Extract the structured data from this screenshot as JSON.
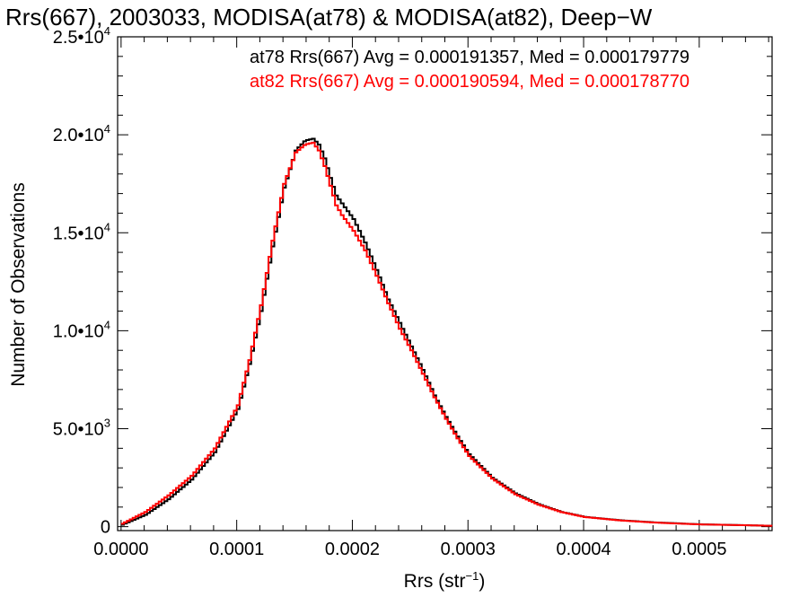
{
  "chart_data": {
    "type": "line",
    "title": "Rrs(667), 2003033, MODISA(at78) & MODISA(at82), Deep−W",
    "xlabel": "Rrs (str",
    "xlabel_sup": "−1",
    "xlabel_end": ")",
    "ylabel": "Number of Observations",
    "xlim": [
      -3e-06,
      0.000563
    ],
    "ylim": [
      -200,
      25000
    ],
    "x_ticks": [
      {
        "value": 0.0,
        "label": "0.0000"
      },
      {
        "value": 0.0001,
        "label": "0.0001"
      },
      {
        "value": 0.0002,
        "label": "0.0002"
      },
      {
        "value": 0.0003,
        "label": "0.0003"
      },
      {
        "value": 0.0004,
        "label": "0.0004"
      },
      {
        "value": 0.0005,
        "label": "0.0005"
      }
    ],
    "y_ticks": [
      {
        "value": 0,
        "base": "0",
        "exp": ""
      },
      {
        "value": 5000,
        "base": "5.0•10",
        "exp": "3"
      },
      {
        "value": 10000,
        "base": "1.0•10",
        "exp": "4"
      },
      {
        "value": 15000,
        "base": "1.5•10",
        "exp": "4"
      },
      {
        "value": 20000,
        "base": "2.0•10",
        "exp": "4"
      },
      {
        "value": 25000,
        "base": "2.5•10",
        "exp": "4"
      }
    ],
    "annotations": [
      {
        "text": "at78 Rrs(667) Avg = 0.000191357, Med = 0.000179779",
        "color": "#000000"
      },
      {
        "text": "at82 Rrs(667) Avg = 0.000190594, Med = 0.000178770",
        "color": "#ff0000"
      }
    ],
    "series": [
      {
        "color": "#000000",
        "x": [
          0.0,
          2e-05,
          4e-05,
          6e-05,
          8e-05,
          0.0001,
          0.00011,
          0.00012,
          0.00013,
          0.00014,
          0.00015,
          0.000158,
          0.000165,
          0.00017,
          0.000175,
          0.00018,
          0.000185,
          0.00019,
          0.0002,
          0.00021,
          0.00022,
          0.00023,
          0.00024,
          0.00025,
          0.00026,
          0.00027,
          0.00028,
          0.00029,
          0.0003,
          0.00032,
          0.00034,
          0.00036,
          0.00038,
          0.0004,
          0.00043,
          0.00046,
          0.0005,
          0.00055,
          0.000563
        ],
        "y": [
          100,
          600,
          1400,
          2400,
          3800,
          6000,
          8300,
          11000,
          14300,
          17300,
          19200,
          19700,
          19800,
          19500,
          18800,
          17800,
          16900,
          16500,
          15700,
          14500,
          13100,
          11600,
          10400,
          9200,
          8000,
          6700,
          5600,
          4600,
          3700,
          2500,
          1700,
          1150,
          750,
          500,
          330,
          220,
          120,
          60,
          40
        ]
      },
      {
        "color": "#ff0000",
        "x": [
          0.0,
          2e-05,
          4e-05,
          6e-05,
          8e-05,
          0.0001,
          0.00011,
          0.00012,
          0.00013,
          0.00014,
          0.00015,
          0.000158,
          0.000165,
          0.00017,
          0.000175,
          0.00018,
          0.000185,
          0.00019,
          0.0002,
          0.00021,
          0.00022,
          0.00023,
          0.00024,
          0.00025,
          0.00026,
          0.00027,
          0.00028,
          0.00029,
          0.0003,
          0.00032,
          0.00034,
          0.00036,
          0.00038,
          0.0004,
          0.00043,
          0.00046,
          0.0005,
          0.00055,
          0.000563
        ],
        "y": [
          150,
          750,
          1600,
          2600,
          4000,
          6200,
          8500,
          11300,
          14600,
          17500,
          19100,
          19500,
          19600,
          19200,
          18400,
          17400,
          16400,
          15900,
          15100,
          14100,
          12800,
          11400,
          10100,
          9000,
          7800,
          6600,
          5500,
          4500,
          3600,
          2450,
          1650,
          1120,
          740,
          490,
          320,
          210,
          115,
          60,
          40
        ]
      }
    ]
  }
}
